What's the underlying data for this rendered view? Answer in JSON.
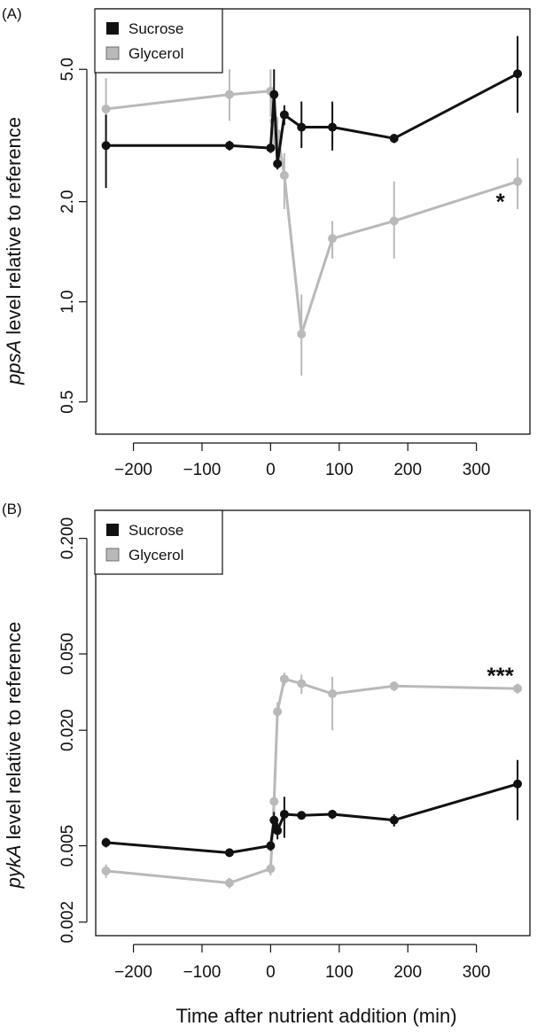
{
  "chart_data": [
    {
      "panel": "(A)",
      "type": "line",
      "scale": "log",
      "ylabel_italic": "ppsA",
      "ylabel_rest": " level relative to reference",
      "xlabel": "",
      "xlim": [
        -255,
        378
      ],
      "ylim": [
        0.4,
        7.6
      ],
      "xticks": [
        -200,
        -100,
        0,
        100,
        200,
        300
      ],
      "xtick_labels": [
        "−200",
        "−100",
        "0",
        "100",
        "200",
        "300"
      ],
      "yticks": [
        0.5,
        1.0,
        2.0,
        5.0
      ],
      "ytick_labels": [
        "0.5",
        "1.0",
        "2.0",
        "5.0"
      ],
      "legend": [
        "Sucrose",
        "Glycerol"
      ],
      "annotation": "*",
      "annotation_at": {
        "x": 335,
        "y": 2.0
      },
      "series": [
        {
          "name": "Glycerol",
          "color": "#b9b9b9",
          "x": [
            -240,
            -60,
            0,
            5,
            10,
            20,
            45,
            90,
            180,
            360
          ],
          "y": [
            3.8,
            4.2,
            4.3,
            3.5,
            3.2,
            2.4,
            0.8,
            1.55,
            1.75,
            2.3
          ],
          "lo": [
            3.0,
            3.5,
            3.6,
            2.9,
            2.6,
            1.9,
            0.6,
            1.35,
            1.35,
            1.9
          ],
          "hi": [
            4.7,
            5.0,
            5.0,
            4.1,
            3.6,
            2.8,
            1.05,
            1.75,
            2.3,
            2.7
          ]
        },
        {
          "name": "Sucrose",
          "color": "#111111",
          "x": [
            -240,
            -60,
            0,
            5,
            10,
            20,
            45,
            90,
            180,
            360
          ],
          "y": [
            2.95,
            2.95,
            2.9,
            4.2,
            2.6,
            3.65,
            3.35,
            3.35,
            3.1,
            4.85
          ],
          "lo": [
            2.2,
            2.85,
            2.8,
            3.5,
            2.5,
            3.4,
            2.9,
            2.85,
            3.0,
            3.7
          ],
          "hi": [
            3.65,
            3.05,
            3.0,
            5.0,
            2.7,
            3.9,
            4.0,
            4.0,
            3.2,
            6.3
          ]
        }
      ]
    },
    {
      "panel": "(B)",
      "type": "line",
      "scale": "log",
      "ylabel_italic": "pykA",
      "ylabel_rest": " level relative to reference",
      "xlabel": "Time after nutrient addition (min)",
      "xlim": [
        -255,
        378
      ],
      "ylim": [
        0.0017,
        0.28
      ],
      "xticks": [
        -200,
        -100,
        0,
        100,
        200,
        300
      ],
      "xtick_labels": [
        "−200",
        "−100",
        "0",
        "100",
        "200",
        "300"
      ],
      "yticks": [
        0.002,
        0.005,
        0.02,
        0.05,
        0.2
      ],
      "ytick_labels": [
        "0.002",
        "0.005",
        "0.020",
        "0.050",
        "0.200"
      ],
      "legend": [
        "Sucrose",
        "Glycerol"
      ],
      "annotation": "***",
      "annotation_at": {
        "x": 335,
        "y": 0.0385
      },
      "series": [
        {
          "name": "Glycerol",
          "color": "#b9b9b9",
          "x": [
            -240,
            -60,
            0,
            5,
            10,
            20,
            45,
            90,
            180,
            360
          ],
          "y": [
            0.0037,
            0.0032,
            0.0038,
            0.0085,
            0.025,
            0.037,
            0.035,
            0.031,
            0.034,
            0.033
          ],
          "lo": [
            0.0034,
            0.003,
            0.0035,
            0.0075,
            0.022,
            0.034,
            0.031,
            0.02,
            0.032,
            0.031
          ],
          "hi": [
            0.004,
            0.0034,
            0.0041,
            0.0095,
            0.028,
            0.04,
            0.039,
            0.038,
            0.036,
            0.035
          ]
        },
        {
          "name": "Sucrose",
          "color": "#111111",
          "x": [
            -240,
            -60,
            0,
            5,
            10,
            20,
            45,
            90,
            180,
            360
          ],
          "y": [
            0.0052,
            0.0046,
            0.005,
            0.0068,
            0.006,
            0.0073,
            0.0072,
            0.0073,
            0.0068,
            0.0105
          ],
          "lo": [
            0.0049,
            0.0044,
            0.0047,
            0.0062,
            0.0054,
            0.0055,
            0.0069,
            0.0069,
            0.0063,
            0.0068
          ],
          "hi": [
            0.0055,
            0.0048,
            0.0053,
            0.0075,
            0.0066,
            0.009,
            0.0075,
            0.0077,
            0.0073,
            0.014
          ]
        }
      ]
    }
  ]
}
